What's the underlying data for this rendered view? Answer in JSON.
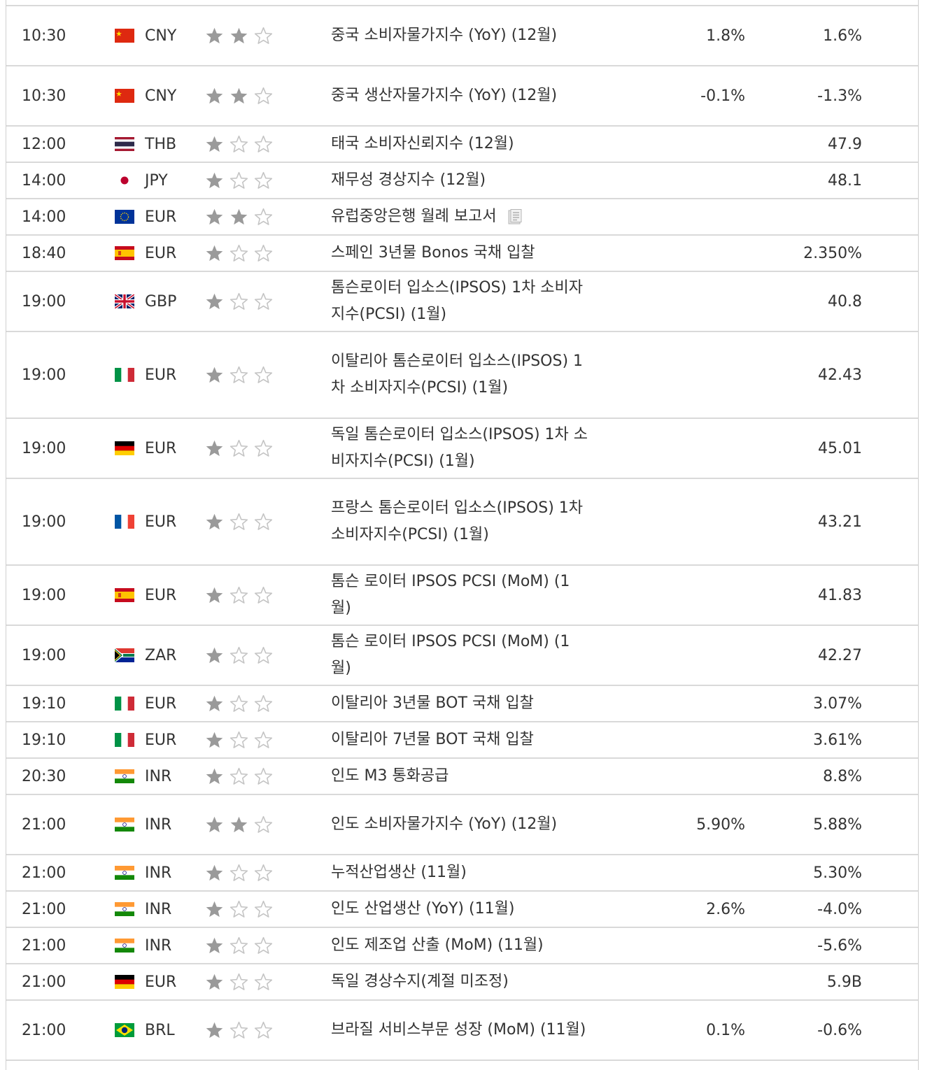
{
  "colors": {
    "star_filled": "#9a9a9a",
    "star_empty": "#c4c4c4",
    "divider": "#d9d9d9"
  },
  "rows": [
    {
      "time": "10:30",
      "flag": "china",
      "currency": "CNY",
      "importance": 2,
      "event": "중국 소비자물가지수 (YoY) (12월)",
      "has_report_icon": false,
      "forecast": "1.8%",
      "previous": "1.6%"
    },
    {
      "time": "10:30",
      "flag": "china",
      "currency": "CNY",
      "importance": 2,
      "event": "중국 생산자물가지수 (YoY) (12월)",
      "has_report_icon": false,
      "forecast": "-0.1%",
      "previous": "-1.3%"
    },
    {
      "time": "12:00",
      "flag": "thailand",
      "currency": "THB",
      "importance": 1,
      "event": "태국 소비자신뢰지수 (12월)",
      "has_report_icon": false,
      "forecast": "",
      "previous": "47.9"
    },
    {
      "time": "14:00",
      "flag": "japan",
      "currency": "JPY",
      "importance": 1,
      "event": "재무성 경상지수 (12월)",
      "has_report_icon": false,
      "forecast": "",
      "previous": "48.1"
    },
    {
      "time": "14:00",
      "flag": "eu",
      "currency": "EUR",
      "importance": 2,
      "event": "유럽중앙은행 월례 보고서",
      "has_report_icon": true,
      "forecast": "",
      "previous": ""
    },
    {
      "time": "18:40",
      "flag": "spain",
      "currency": "EUR",
      "importance": 1,
      "event": "스페인 3년물 Bonos 국채 입찰",
      "has_report_icon": false,
      "forecast": "",
      "previous": "2.350%"
    },
    {
      "time": "19:00",
      "flag": "uk",
      "currency": "GBP",
      "importance": 1,
      "event": "톰슨로이터 입소스(IPSOS) 1차 소비자지수(PCSI) (1월)",
      "has_report_icon": false,
      "forecast": "",
      "previous": "40.8"
    },
    {
      "time": "19:00",
      "flag": "italy",
      "currency": "EUR",
      "importance": 1,
      "event": "이탈리아 톰슨로이터 입소스(IPSOS) 1차 소비자지수(PCSI) (1월)",
      "has_report_icon": false,
      "forecast": "",
      "previous": "42.43"
    },
    {
      "time": "19:00",
      "flag": "germany",
      "currency": "EUR",
      "importance": 1,
      "event": "독일 톰슨로이터 입소스(IPSOS) 1차 소비자지수(PCSI) (1월)",
      "has_report_icon": false,
      "forecast": "",
      "previous": "45.01"
    },
    {
      "time": "19:00",
      "flag": "france",
      "currency": "EUR",
      "importance": 1,
      "event": "프랑스 톰슨로이터 입소스(IPSOS) 1차 소비자지수(PCSI) (1월)",
      "has_report_icon": false,
      "forecast": "",
      "previous": "43.21"
    },
    {
      "time": "19:00",
      "flag": "spain",
      "currency": "EUR",
      "importance": 1,
      "event": "톰슨 로이터 IPSOS PCSI (MoM) (1월)",
      "has_report_icon": false,
      "forecast": "",
      "previous": "41.83"
    },
    {
      "time": "19:00",
      "flag": "south-africa",
      "currency": "ZAR",
      "importance": 1,
      "event": "톰슨 로이터 IPSOS PCSI (MoM) (1월)",
      "has_report_icon": false,
      "forecast": "",
      "previous": "42.27"
    },
    {
      "time": "19:10",
      "flag": "italy",
      "currency": "EUR",
      "importance": 1,
      "event": "이탈리아 3년물 BOT 국채 입찰",
      "has_report_icon": false,
      "forecast": "",
      "previous": "3.07%"
    },
    {
      "time": "19:10",
      "flag": "italy",
      "currency": "EUR",
      "importance": 1,
      "event": "이탈리아 7년물 BOT 국채 입찰",
      "has_report_icon": false,
      "forecast": "",
      "previous": "3.61%"
    },
    {
      "time": "20:30",
      "flag": "india",
      "currency": "INR",
      "importance": 1,
      "event": "인도 M3 통화공급",
      "has_report_icon": false,
      "forecast": "",
      "previous": "8.8%"
    },
    {
      "time": "21:00",
      "flag": "india",
      "currency": "INR",
      "importance": 2,
      "event": "인도 소비자물가지수 (YoY) (12월)",
      "has_report_icon": false,
      "forecast": "5.90%",
      "previous": "5.88%"
    },
    {
      "time": "21:00",
      "flag": "india",
      "currency": "INR",
      "importance": 1,
      "event": "누적산업생산 (11월)",
      "has_report_icon": false,
      "forecast": "",
      "previous": "5.30%"
    },
    {
      "time": "21:00",
      "flag": "india",
      "currency": "INR",
      "importance": 1,
      "event": "인도 산업생산 (YoY) (11월)",
      "has_report_icon": false,
      "forecast": "2.6%",
      "previous": "-4.0%"
    },
    {
      "time": "21:00",
      "flag": "india",
      "currency": "INR",
      "importance": 1,
      "event": "인도 제조업 산출 (MoM) (11월)",
      "has_report_icon": false,
      "forecast": "",
      "previous": "-5.6%"
    },
    {
      "time": "21:00",
      "flag": "germany",
      "currency": "EUR",
      "importance": 1,
      "event": "독일 경상수지(계절 미조정)",
      "has_report_icon": false,
      "forecast": "",
      "previous": "5.9B"
    },
    {
      "time": "21:00",
      "flag": "brazil",
      "currency": "BRL",
      "importance": 1,
      "event": "브라질 서비스부문 성장 (MoM) (11월)",
      "has_report_icon": false,
      "forecast": "0.1%",
      "previous": "-0.6%"
    }
  ]
}
